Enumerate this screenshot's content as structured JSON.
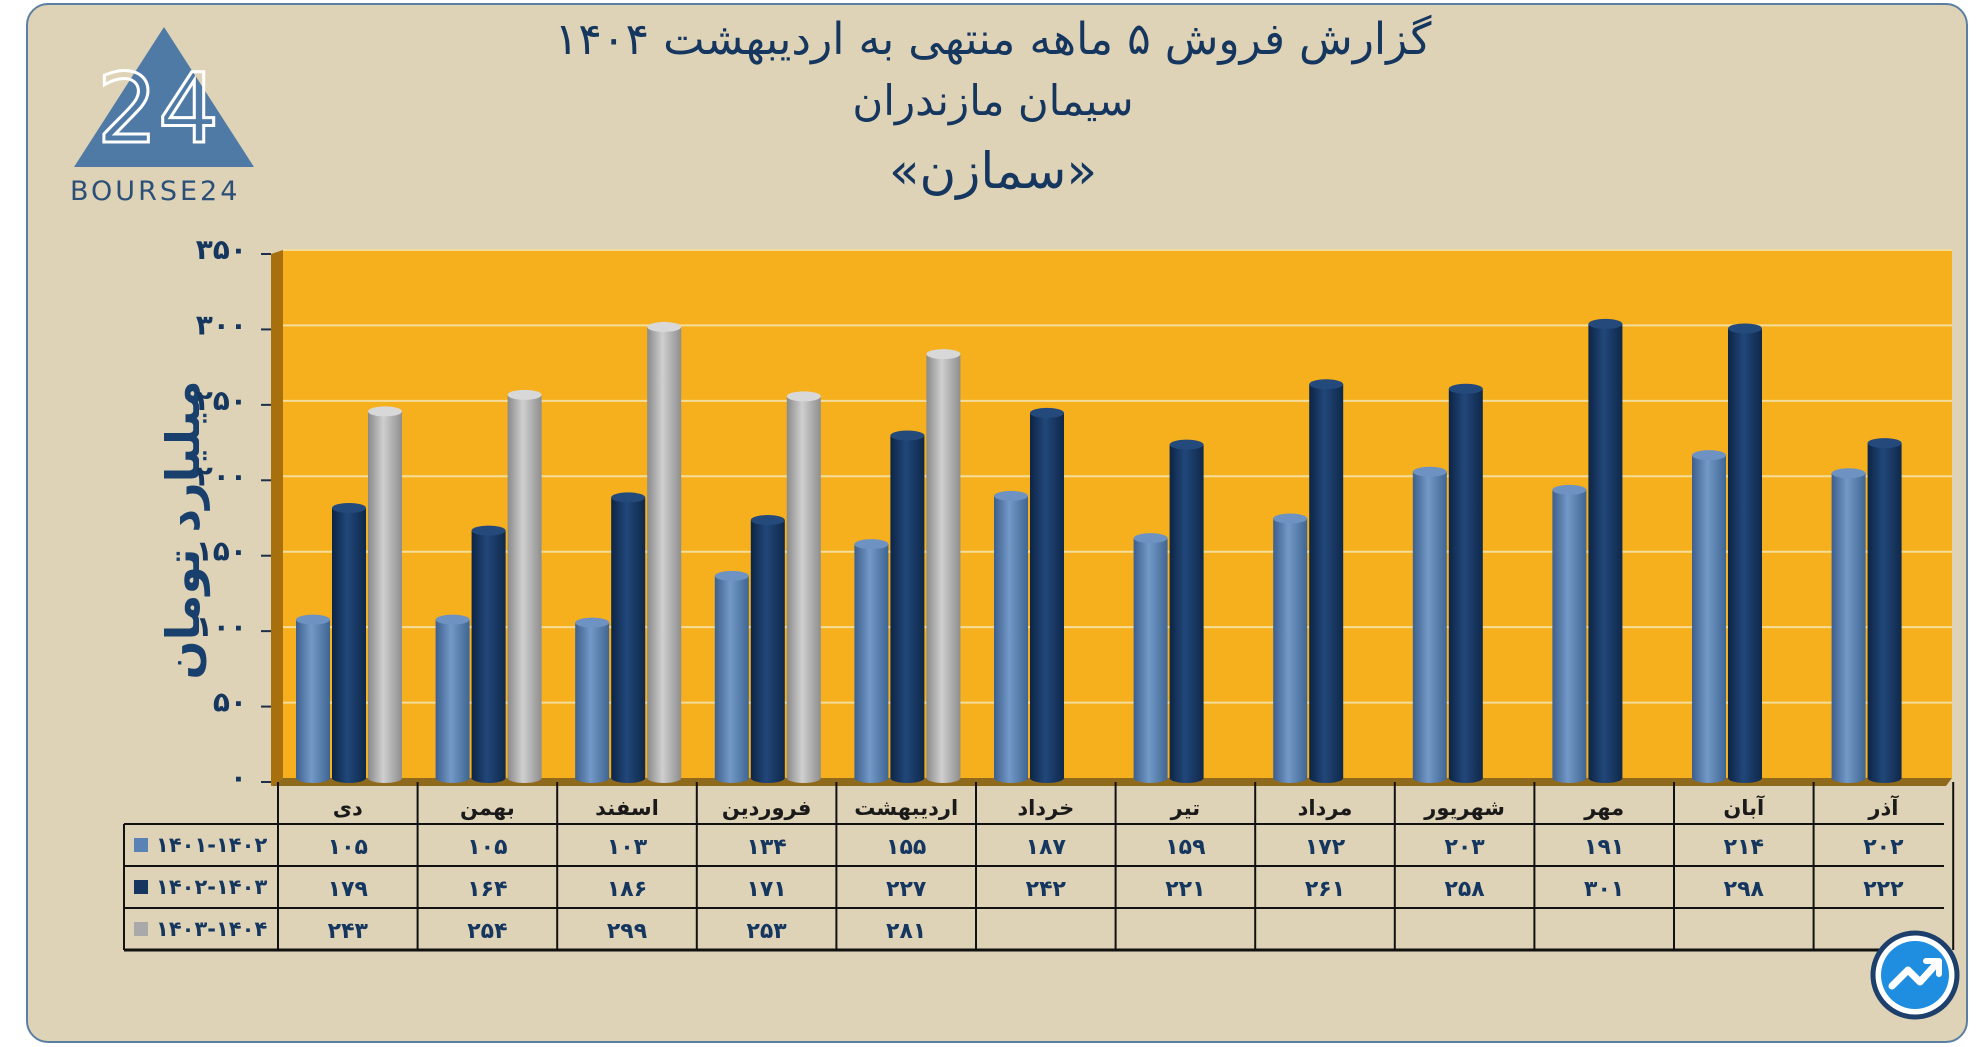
{
  "header": {
    "title_line1": "گزارش  فروش ۵ ماهه منتهی به اردیبهشت ۱۴۰۴",
    "title_line2": "سیمان مازندران",
    "title_line3": "«سمازن»"
  },
  "logo": {
    "text": "BOURSE24",
    "mark": "24"
  },
  "colors": {
    "frame_bg": "#dfd3b7",
    "plot_bg": "#f6b01d",
    "series_1401_1402": "#5a82b4",
    "series_1402_1403": "#17365f",
    "series_1403_1404": "#a9a9a9",
    "text": "#14365f"
  },
  "chart_data": {
    "type": "bar",
    "ylabel": "میلیارد تومان",
    "ylim": [
      0,
      350
    ],
    "yticks": [
      "۰",
      "۵۰",
      "۱۰۰",
      "۱۵۰",
      "۲۰۰",
      "۲۵۰",
      "۳۰۰",
      "۳۵۰"
    ],
    "grid": true,
    "categories": [
      "دی",
      "بهمن",
      "اسفند",
      "فروردین",
      "اردیبهشت",
      "خرداد",
      "تیر",
      "مرداد",
      "شهریور",
      "مهر",
      "آبان",
      "آذر"
    ],
    "series": [
      {
        "name": "۱۴۰۱-۱۴۰۲",
        "values": [
          105,
          105,
          103,
          134,
          155,
          187,
          159,
          172,
          203,
          191,
          214,
          202
        ],
        "labels": [
          "۱۰۵",
          "۱۰۵",
          "۱۰۳",
          "۱۳۴",
          "۱۵۵",
          "۱۸۷",
          "۱۵۹",
          "۱۷۲",
          "۲۰۳",
          "۱۹۱",
          "۲۱۴",
          "۲۰۲"
        ]
      },
      {
        "name": "۱۴۰۲-۱۴۰۳",
        "values": [
          179,
          164,
          186,
          171,
          227,
          242,
          221,
          261,
          258,
          301,
          298,
          222
        ],
        "labels": [
          "۱۷۹",
          "۱۶۴",
          "۱۸۶",
          "۱۷۱",
          "۲۲۷",
          "۲۴۲",
          "۲۲۱",
          "۲۶۱",
          "۲۵۸",
          "۳۰۱",
          "۲۹۸",
          "۲۲۲"
        ]
      },
      {
        "name": "۱۴۰۳-۱۴۰۴",
        "values": [
          243,
          254,
          299,
          253,
          281,
          null,
          null,
          null,
          null,
          null,
          null,
          null
        ],
        "labels": [
          "۲۴۳",
          "۲۵۴",
          "۲۹۹",
          "۲۵۳",
          "۲۸۱",
          "",
          "",
          "",
          "",
          "",
          "",
          ""
        ]
      }
    ]
  }
}
